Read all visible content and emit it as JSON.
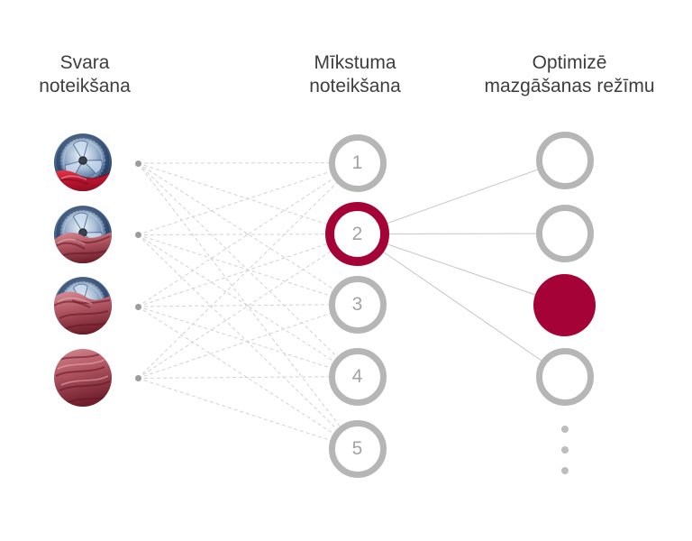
{
  "diagram": {
    "background": "#ffffff"
  },
  "colors": {
    "accent": "#a50338",
    "node_gray": "#b6b6b6",
    "number_gray": "#a3a3a3",
    "text": "#3e3e3e",
    "line_dashed": "#d2d2d2",
    "line_solid": "#c6c6c6",
    "connector_dot": "#9c9c9c",
    "ellipsis_dot": "#bdbdbd"
  },
  "columns": [
    {
      "id": "weight-detection",
      "title_lines": [
        "Svara",
        "noteikšana"
      ],
      "nodes": [
        {
          "image": "washer-drum-with-small-red-laundry-photo",
          "fabric_coverage": 0.22
        },
        {
          "image": "washer-drum-with-medium-red-laundry-photo",
          "fabric_coverage": 0.45
        },
        {
          "image": "washer-drum-with-large-red-laundry-photo",
          "fabric_coverage": 0.72
        },
        {
          "image": "washer-drum-full-of-red-laundry-photo",
          "fabric_coverage": 1
        }
      ]
    },
    {
      "id": "softness-detection",
      "title_lines": [
        "Mīkstuma",
        "noteikšana"
      ],
      "nodes": [
        {
          "label": "1",
          "state": "default"
        },
        {
          "label": "2",
          "state": "active-outline"
        },
        {
          "label": "3",
          "state": "default"
        },
        {
          "label": "4",
          "state": "default"
        },
        {
          "label": "5",
          "state": "default"
        }
      ]
    },
    {
      "id": "wash-mode-optimization",
      "title_lines": [
        "Optimizē",
        "mazgāšanas režīmu"
      ],
      "nodes": [
        {
          "state": "default"
        },
        {
          "state": "default"
        },
        {
          "state": "filled"
        },
        {
          "state": "default"
        }
      ],
      "ellipsis_dot_count": 3
    }
  ],
  "edges": {
    "input_to_hidden": {
      "style": "dashed",
      "connectivity": "all-to-all"
    },
    "hidden_to_output": {
      "style": "solid",
      "from_node": "2",
      "to_nodes": [
        "1",
        "2",
        "3",
        "4"
      ]
    }
  }
}
